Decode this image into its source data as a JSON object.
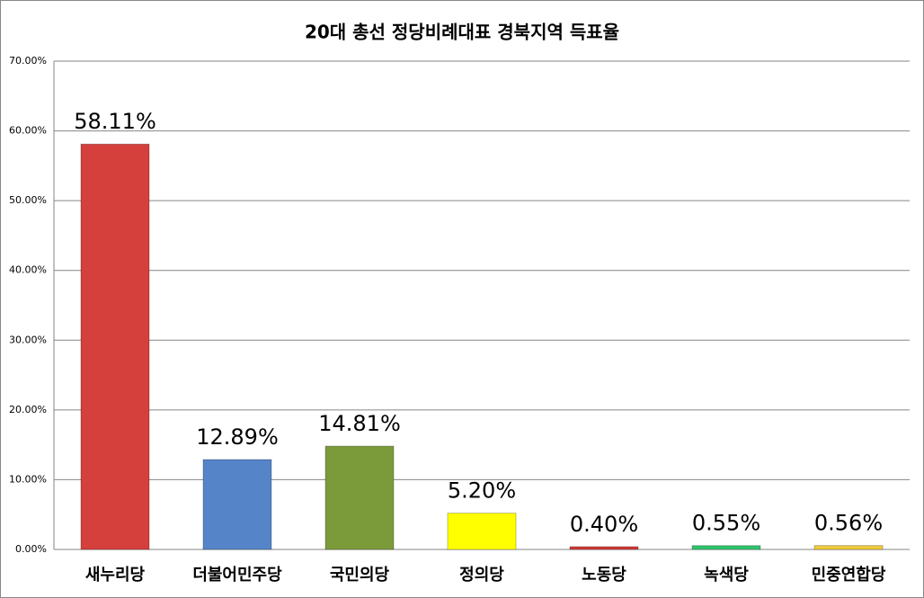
{
  "chart_data": {
    "type": "bar",
    "title": "20대 총선 정당비례대표 경북지역 득표율",
    "categories": [
      "새누리당",
      "더불어민주당",
      "국민의당",
      "정의당",
      "노동당",
      "녹색당",
      "민중연합당"
    ],
    "values": [
      58.11,
      12.89,
      14.81,
      5.2,
      0.4,
      0.55,
      0.56
    ],
    "value_labels": [
      "58.11%",
      "12.89%",
      "14.81%",
      "5.20%",
      "0.40%",
      "0.55%",
      "0.56%"
    ],
    "colors": [
      "#d53f3c",
      "#5584c8",
      "#7b9a3a",
      "#ffff00",
      "#d33a36",
      "#2fc46c",
      "#f0cc3c"
    ],
    "ylim": [
      0,
      70
    ],
    "yticks": [
      {
        "value": 0,
        "label": "0.00%"
      },
      {
        "value": 10,
        "label": "10.00%"
      },
      {
        "value": 20,
        "label": "20.00%"
      },
      {
        "value": 30,
        "label": "30.00%"
      },
      {
        "value": 40,
        "label": "40.00%"
      },
      {
        "value": 50,
        "label": "50.00%"
      },
      {
        "value": 60,
        "label": "60.00%"
      },
      {
        "value": 70,
        "label": "70.00%"
      }
    ],
    "grid": true
  }
}
